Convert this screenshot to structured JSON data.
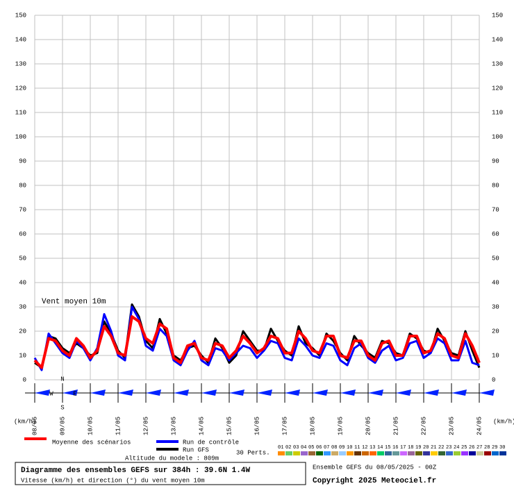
{
  "chart_data": {
    "type": "line",
    "title": "Diagramme des ensembles GEFS sur 384h : 39.6N 1.4W",
    "subtitle": "Vitesse (km/h) et direction (°) du vent moyen 10m",
    "run_info": "Ensemble GEFS du 08/05/2025 - 00Z",
    "copyright": "Copyright 2025 Meteociel.fr",
    "altitude": "Altitude du modele : 809m",
    "annotation": "Vent moyen 10m",
    "y_unit_label": "(km/h)",
    "perts_label": "30 Perts.",
    "compass": [
      "N",
      "E",
      "S",
      "W"
    ],
    "categories": [
      "08/05",
      null,
      null,
      null,
      "09/05",
      null,
      null,
      null,
      "10/05",
      null,
      null,
      null,
      "11/05",
      null,
      null,
      null,
      "12/05",
      null,
      null,
      null,
      "13/05",
      null,
      null,
      null,
      "14/05",
      null,
      null,
      null,
      "15/05",
      null,
      null,
      null,
      "16/05",
      null,
      null,
      null,
      "17/05",
      null,
      null,
      null,
      "18/05",
      null,
      null,
      null,
      "19/05",
      null,
      null,
      null,
      "20/05",
      null,
      null,
      null,
      "21/05",
      null,
      null,
      null,
      "22/05",
      null,
      null,
      null,
      "23/05",
      null,
      null,
      null,
      "24/05"
    ],
    "ylim": [
      0,
      150
    ],
    "yticks": [
      0,
      10,
      20,
      30,
      40,
      50,
      60,
      70,
      80,
      90,
      100,
      110,
      120,
      130,
      140,
      150
    ],
    "grid": true,
    "series": [
      {
        "name": "Moyenne des scénarios",
        "color": "#ff0000",
        "width": 4,
        "values": [
          8,
          5,
          17,
          16,
          12,
          10,
          17,
          14,
          9,
          12,
          22,
          18,
          11,
          10,
          26,
          24,
          17,
          15,
          23,
          21,
          9,
          7,
          14,
          15,
          9,
          8,
          15,
          14,
          9,
          12,
          18,
          15,
          11,
          13,
          18,
          17,
          11,
          11,
          20,
          17,
          12,
          11,
          18,
          18,
          10,
          9,
          16,
          16,
          10,
          8,
          15,
          16,
          10,
          10,
          18,
          18,
          11,
          12,
          19,
          17,
          10,
          9,
          19,
          14,
          7
        ]
      },
      {
        "name": "Run de contrôle",
        "color": "#0000ff",
        "width": 3,
        "values": [
          9,
          4,
          19,
          15,
          11,
          9,
          16,
          13,
          8,
          13,
          27,
          20,
          10,
          8,
          30,
          25,
          14,
          12,
          21,
          18,
          8,
          6,
          12,
          16,
          8,
          6,
          13,
          12,
          8,
          11,
          14,
          13,
          9,
          12,
          16,
          15,
          9,
          8,
          17,
          14,
          10,
          9,
          15,
          14,
          8,
          6,
          13,
          15,
          9,
          7,
          12,
          14,
          8,
          9,
          15,
          16,
          9,
          11,
          17,
          15,
          8,
          8,
          16,
          7,
          6
        ]
      },
      {
        "name": "Run GFS",
        "color": "#000000",
        "width": 3,
        "values": [
          7,
          5,
          18,
          17,
          13,
          11,
          15,
          13,
          10,
          11,
          24,
          19,
          12,
          9,
          31,
          26,
          16,
          13,
          25,
          19,
          10,
          8,
          13,
          14,
          10,
          7,
          17,
          13,
          7,
          10,
          20,
          16,
          12,
          12,
          21,
          16,
          12,
          10,
          22,
          15,
          13,
          10,
          19,
          16,
          11,
          8,
          18,
          14,
          11,
          9,
          16,
          15,
          11,
          10,
          19,
          17,
          12,
          11,
          21,
          16,
          11,
          10,
          20,
          12,
          5
        ]
      }
    ],
    "perturbations": [
      {
        "name": "01",
        "color": "#ff8c00"
      },
      {
        "name": "02",
        "color": "#66cc66"
      },
      {
        "name": "03",
        "color": "#cccc00"
      },
      {
        "name": "04",
        "color": "#9966cc"
      },
      {
        "name": "05",
        "color": "#996633"
      },
      {
        "name": "06",
        "color": "#006600"
      },
      {
        "name": "07",
        "color": "#3399ff"
      },
      {
        "name": "08",
        "color": "#ccaa66"
      },
      {
        "name": "09",
        "color": "#99ccff"
      },
      {
        "name": "10",
        "color": "#ff9900"
      },
      {
        "name": "11",
        "color": "#663300"
      },
      {
        "name": "12",
        "color": "#cc6600"
      },
      {
        "name": "13",
        "color": "#ff6600"
      },
      {
        "name": "14",
        "color": "#00cc66"
      },
      {
        "name": "15",
        "color": "#336699"
      },
      {
        "name": "16",
        "color": "#669999"
      },
      {
        "name": "17",
        "color": "#cc66ff"
      },
      {
        "name": "18",
        "color": "#996699"
      },
      {
        "name": "19",
        "color": "#666600"
      },
      {
        "name": "20",
        "color": "#333399"
      },
      {
        "name": "21",
        "color": "#ffcc00"
      },
      {
        "name": "22",
        "color": "#336633"
      },
      {
        "name": "23",
        "color": "#3366cc"
      },
      {
        "name": "24",
        "color": "#99cc33"
      },
      {
        "name": "25",
        "color": "#9933ff"
      },
      {
        "name": "26",
        "color": "#000099"
      },
      {
        "name": "27",
        "color": "#cccc99"
      },
      {
        "name": "28",
        "color": "#990000"
      },
      {
        "name": "29",
        "color": "#0066cc"
      },
      {
        "name": "30",
        "color": "#003399"
      }
    ]
  }
}
